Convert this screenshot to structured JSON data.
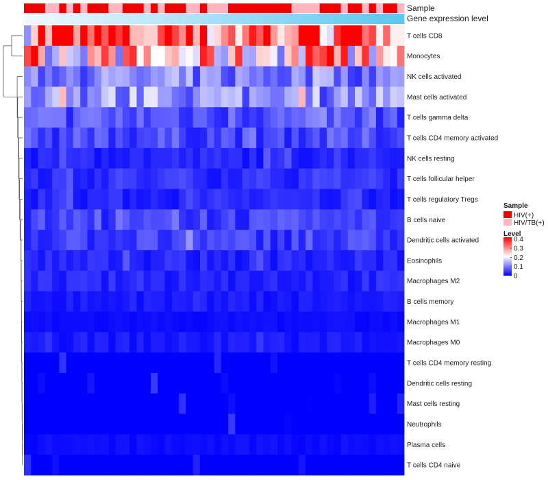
{
  "chart_data": {
    "type": "heatmap",
    "title": "",
    "n_samples": 54,
    "annotation_labels": [
      "Sample",
      "Gene expression level"
    ],
    "sample_groups": [
      "HIV(+)",
      "HIV/TB(+)"
    ],
    "sample_group_colors": [
      "#f10000",
      "#ffb6c1"
    ],
    "sample_group_pattern": "RRRPPRPRPRRRPPRRRPRPRRRPPRPPPRRRRRRRRRPPPPRRRPRRPRPRRP",
    "expression_gradient": [
      "#f0f8ff",
      "#5bc8f0"
    ],
    "rows": [
      "T cells CD8",
      "Monocytes",
      "NK cells activated",
      "Mast cells activated",
      "T cells gamma delta",
      "T cells CD4 memory activated",
      "NK cells resting",
      "T cells follicular helper",
      "T cells regulatory  Tregs",
      "B cells naive",
      "Dendritic cells activated",
      "Eosinophils",
      "Macrophages M2",
      "B cells memory",
      "Macrophages M1",
      "Macrophages M0",
      "T cells CD4 memory resting",
      "Dendritic cells resting",
      "Mast cells resting",
      "Neutrophils",
      "Plasma cells",
      "T cells CD4 naive"
    ],
    "row_mean_level": [
      0.34,
      0.24,
      0.1,
      0.12,
      0.07,
      0.06,
      0.03,
      0.04,
      0.03,
      0.05,
      0.05,
      0.03,
      0.03,
      0.02,
      0.01,
      0.02,
      0.005,
      0.005,
      0.0,
      0.0,
      0.01,
      0.005
    ],
    "legend": {
      "sample_title": "Sample",
      "level_title": "Level",
      "level_ticks": [
        "0.4",
        "0.3",
        "0.2",
        "0.1",
        "0"
      ],
      "level_tick_values": [
        0.4,
        0.3,
        0.2,
        0.1,
        0.0
      ],
      "level_range": [
        0.0,
        0.42
      ],
      "level_colors": [
        "#0000ff",
        "#ffffff",
        "#ff0000"
      ],
      "position": "right"
    }
  }
}
